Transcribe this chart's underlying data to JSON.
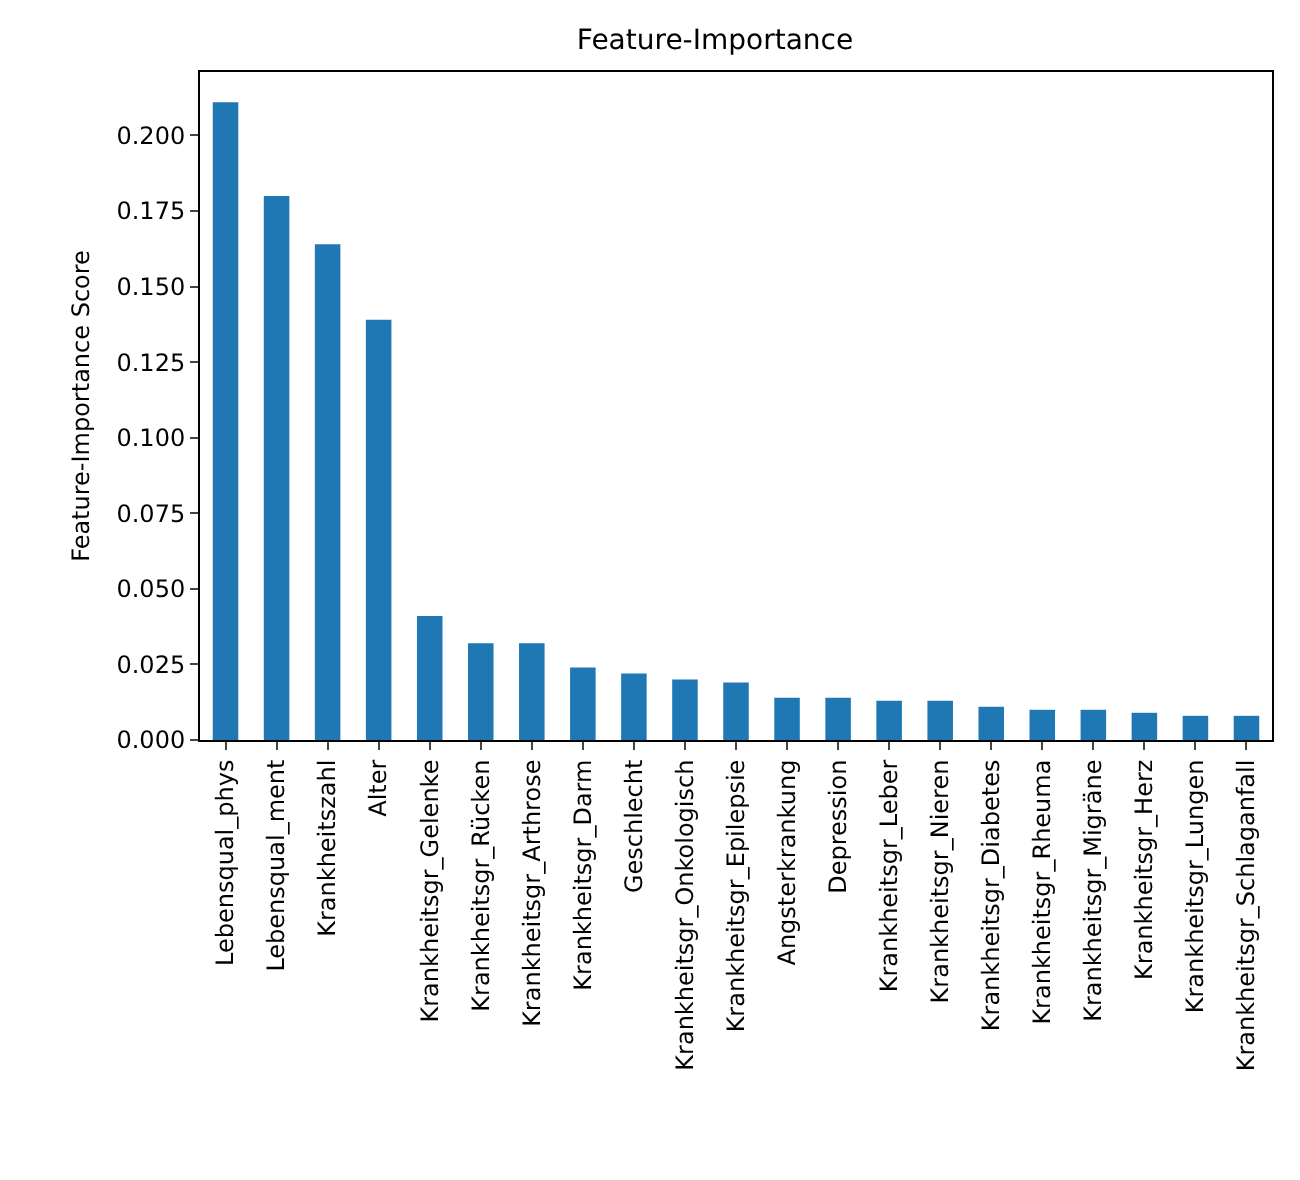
{
  "chart_data": {
    "type": "bar",
    "title": "Feature-Importance",
    "ylabel": "Feature-Importance Score",
    "categories": [
      "Lebensqual_phys",
      "Lebensqual_ment",
      "Krankheitszahl",
      "Alter",
      "Krankheitsgr_Gelenke",
      "Krankheitsgr_Rücken",
      "Krankheitsgr_Arthrose",
      "Krankheitsgr_Darm",
      "Geschlecht",
      "Krankheitsgr_Onkologisch",
      "Krankheitsgr_Epilepsie",
      "Angsterkrankung",
      "Depression",
      "Krankheitsgr_Leber",
      "Krankheitsgr_Nieren",
      "Krankheitsgr_Diabetes",
      "Krankheitsgr_Rheuma",
      "Krankheitsgr_Migräne",
      "Krankheitsgr_Herz",
      "Krankheitsgr_Lungen",
      "Krankheitsgr_Schlaganfall"
    ],
    "values": [
      0.211,
      0.18,
      0.164,
      0.139,
      0.041,
      0.032,
      0.032,
      0.024,
      0.022,
      0.02,
      0.019,
      0.014,
      0.014,
      0.013,
      0.013,
      0.011,
      0.01,
      0.01,
      0.009,
      0.008,
      0.008
    ],
    "color": "#1f77b4",
    "ylim": [
      0,
      0.221
    ],
    "yticks": [
      {
        "value": 0,
        "label": "0.000"
      },
      {
        "value": 0.025,
        "label": "0.025"
      },
      {
        "value": 0.05,
        "label": "0.050"
      },
      {
        "value": 0.075,
        "label": "0.075"
      },
      {
        "value": 0.1,
        "label": "0.100"
      },
      {
        "value": 0.125,
        "label": "0.125"
      },
      {
        "value": 0.15,
        "label": "0.150"
      },
      {
        "value": 0.175,
        "label": "0.175"
      },
      {
        "value": 0.2,
        "label": "0.200"
      }
    ],
    "grid": false
  }
}
